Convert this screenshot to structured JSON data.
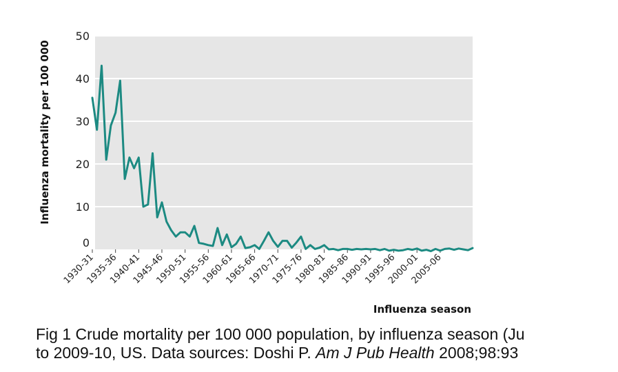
{
  "chart_data": {
    "type": "line",
    "title": "",
    "xlabel": "Influenza season",
    "ylabel": "Influenza mortality per 100 000",
    "ylim": [
      0,
      50
    ],
    "yticks": [
      0,
      10,
      20,
      30,
      40,
      50
    ],
    "grid": true,
    "x_tick_labels": [
      "1930-31",
      "1935-36",
      "1940-41",
      "1945-46",
      "1950-51",
      "1955-56",
      "1960-61",
      "1965-66",
      "1970-71",
      "1975-76",
      "1980-81",
      "1985-86",
      "1990-91",
      "1995-96",
      "2000-01",
      "2005-06"
    ],
    "x_tick_every": 5,
    "series": [
      {
        "name": "Crude mortality per 100 000",
        "color": "#1c8a82",
        "values": [
          35.5,
          28,
          43,
          21,
          29,
          32,
          39.5,
          16.5,
          21.5,
          19,
          21.5,
          10,
          10.5,
          22.5,
          7.5,
          11,
          6.5,
          4.5,
          3,
          4,
          4,
          3,
          5.5,
          1.5,
          1.3,
          1,
          0.8,
          5,
          1,
          3.5,
          0.5,
          1.3,
          3,
          0.3,
          0.5,
          1,
          0.1,
          2,
          4,
          2,
          0.6,
          2,
          2,
          0.4,
          1.6,
          3,
          0.1,
          1,
          0.1,
          0.4,
          1,
          0,
          0.1,
          -0.2,
          0.1,
          0.1,
          -0.1,
          0.1,
          0,
          0.1,
          0,
          0.1,
          -0.2,
          0.1,
          -0.3,
          -0.1,
          -0.3,
          -0.2,
          0.1,
          -0.1,
          0.2,
          -0.3,
          -0.1,
          -0.4,
          0.1,
          -0.3,
          0.1,
          0.2,
          -0.1,
          0.2,
          0,
          -0.2,
          0.3
        ]
      }
    ]
  },
  "caption": {
    "line1": "Fig 1 Crude mortality per 100 000 population, by influenza season (Ju",
    "line2_prefix": "to 2009-10, US. Data sources: Doshi P. ",
    "line2_italic": "Am J Pub Health",
    "line2_suffix": " 2008;98:93"
  }
}
